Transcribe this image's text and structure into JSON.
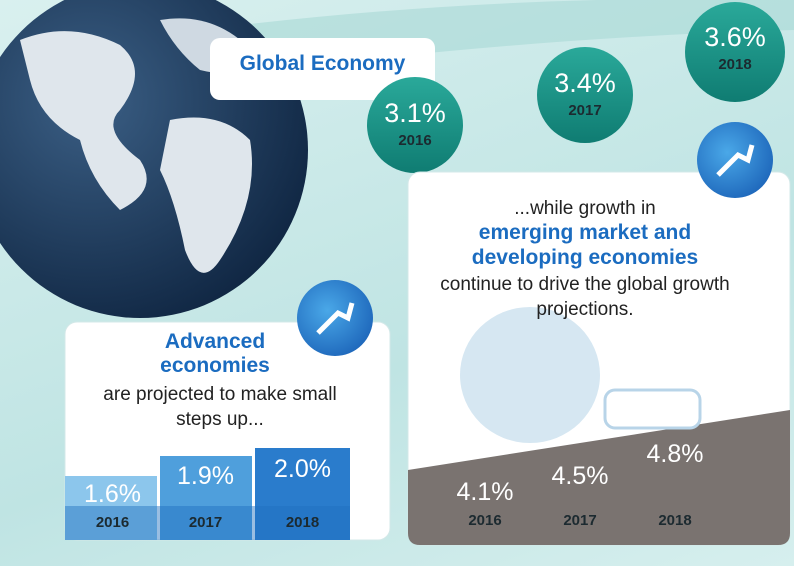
{
  "title": "Global Economy",
  "global": [
    {
      "value": "3.1%",
      "year": "2016"
    },
    {
      "value": "3.4%",
      "year": "2017"
    },
    {
      "value": "3.6%",
      "year": "2018"
    }
  ],
  "advanced": {
    "heading": "Advanced economies",
    "text": "are projected to make small steps up...",
    "items": [
      {
        "value": "1.6%",
        "year": "2016"
      },
      {
        "value": "1.9%",
        "year": "2017"
      },
      {
        "value": "2.0%",
        "year": "2018"
      }
    ]
  },
  "emerging": {
    "intro": "...while growth in",
    "heading": "emerging market and developing economies",
    "text": "continue to drive the global growth projections.",
    "items": [
      {
        "value": "4.1%",
        "year": "2016"
      },
      {
        "value": "4.5%",
        "year": "2017"
      },
      {
        "value": "4.8%",
        "year": "2018"
      }
    ]
  }
}
